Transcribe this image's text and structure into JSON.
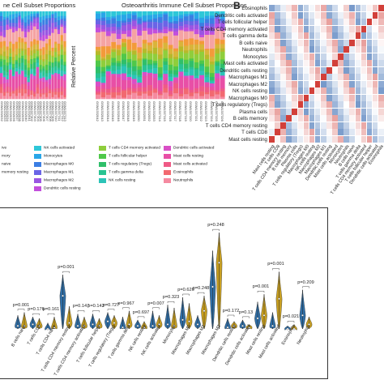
{
  "panel_a": {
    "title_left": "ne Cell Subset Proportions",
    "title_right": "Osteoarthritis Immune Cell Subset Proportions",
    "ylabel": "Relative Percent",
    "samples_left": [
      "GSM1332032",
      "GSM1332033",
      "GSM1332034",
      "GSM1332035",
      "GSM1332036",
      "GSM1332037",
      "GSM1332038",
      "GSM1332039",
      "GSM1332040",
      "GSM1332041",
      "GSM1337302",
      "GSM1337303",
      "GSM1337304",
      "GSM1337305",
      "GSM1337306",
      "GSM1337307",
      "GSM1337308",
      "GSM1337309",
      "GSM1337310",
      "GSM1337311",
      "GSM1337312",
      "GSM1337313"
    ],
    "samples_right": [
      "GSM1332042",
      "GSM1332043",
      "GSM1332044",
      "GSM1332045",
      "GSM1332046",
      "GSM1332047",
      "GSM1332048",
      "GSM1332049",
      "GSM1332050",
      "GSM1332051",
      "GSM1332052",
      "GSM1332053",
      "GSM1337314",
      "GSM1337315",
      "GSM1337316",
      "GSM1337317",
      "GSM1337318",
      "GSM1337319",
      "GSM1337320",
      "GSM1337321",
      "GSM1337322",
      "GSM1337323",
      "GSM1337324",
      "GSM1337325",
      "GSM1337326"
    ]
  },
  "legend": [
    {
      "label": "ive",
      "color": "#f5a3a3"
    },
    {
      "label": "mory",
      "color": "#f39a3a"
    },
    {
      "label": "naive",
      "color": "#d9b43a"
    },
    {
      "label": "memory resting",
      "color": "#b7b92a"
    },
    {
      "label": "NK cells activated",
      "color": "#2ec7d8"
    },
    {
      "label": "Monocytes",
      "color": "#29a6e8"
    },
    {
      "label": "Macrophages M0",
      "color": "#3b7ee3"
    },
    {
      "label": "Macrophages M1",
      "color": "#6a64e6"
    },
    {
      "label": "Macrophages M2",
      "color": "#9a56e2"
    },
    {
      "label": "Dendritic cells resting",
      "color": "#c24fdc"
    },
    {
      "label": "T cells CD4 memory activated",
      "color": "#8fce3c"
    },
    {
      "label": "T cells follicular helper",
      "color": "#4fc84a"
    },
    {
      "label": "T cells regulatory (Tregs)",
      "color": "#2fbf6a"
    },
    {
      "label": "T cells gamma delta",
      "color": "#28c392"
    },
    {
      "label": "NK cells resting",
      "color": "#2cc4b8"
    },
    {
      "label": "Dendritic cells activated",
      "color": "#d94fc6"
    },
    {
      "label": "Mast cells resting",
      "color": "#e84fa6"
    },
    {
      "label": "Mast cells activated",
      "color": "#ef5a86"
    },
    {
      "label": "Eosinophils",
      "color": "#f26970"
    },
    {
      "label": "Neutrophils",
      "color": "#f58aa0"
    }
  ],
  "panel_b": {
    "letter": "B",
    "rows": [
      "Eosinophils",
      "Dendritic cells activated",
      "T cells follicular helper",
      "T cells CD4 memory activated",
      "T cells gamma delta",
      "B cells naive",
      "Neutrophils",
      "Monocytes",
      "Mast cells activated",
      "Dendritic cells resting",
      "Macrophages M1",
      "Macrophages M2",
      "NK cells resting",
      "Macrophages M0",
      "T cells regulatory (Tregs)",
      "Plasma cells",
      "B cells memory",
      "T cells CD4 memory resting",
      "T cells CD8",
      "Mast cells resting"
    ],
    "columns": [
      "Mast cells resting",
      "T cells CD8",
      "T cells CD4 memory resting",
      "B cells memory",
      "Plasma cells",
      "T cells regulatory (Tregs)",
      "Macrophages M0",
      "NK cells resting",
      "Macrophages M2",
      "Macrophages M1",
      "Dendritic cells resting",
      "Mast cells activated",
      "Monocytes",
      "Neutrophils",
      "B cells naive",
      "T cells gamma delta",
      "T cells CD4 memory activated",
      "T cells follicular helper",
      "Dendritic cells activated",
      "Eosinophils"
    ],
    "colors": {
      "neg": "#3b6db3",
      "pos": "#d2403a",
      "mid": "#ffffff"
    }
  },
  "chart_data": {
    "type": "violin",
    "title": "",
    "xlabel": "",
    "ylabel": "",
    "categories": [
      "B cells naive",
      "T cells CD8",
      "T cells CD4 naive",
      "T cells CD4 memory resting",
      "T cells CD4 memory activated",
      "T cells follicular helper",
      "T cells regulatory (Tregs)",
      "T cells gamma delta",
      "NK cells resting",
      "NK cells activated",
      "Monocytes",
      "Macrophages M0",
      "Macrophages M1",
      "Macrophages M2",
      "Dendritic cells resting",
      "Dendritic cells activated",
      "Mast cells resting",
      "Mast cells activated",
      "Eosinophils",
      "Neutrophils"
    ],
    "pvalues": [
      "p=0.001",
      "p=0.176",
      "p=0.161",
      "p=0.001",
      "p=0.147",
      "p=0.142",
      "p=0.727",
      "p=0.967",
      "p=0.697",
      "p=0.007",
      "p=0.323",
      "p=0.626",
      "p=0.248",
      "p=0.248",
      "p=0.172",
      "p=0.13",
      "p=0.001",
      "p=0.001",
      "p=0.021",
      "p=0.209"
    ],
    "series": [
      {
        "name": "",
        "color": "#2f6ea6",
        "median": [
          0.02,
          0.03,
          0.0,
          0.22,
          0.02,
          0.03,
          0.05,
          0.01,
          0.02,
          0.02,
          0.03,
          0.06,
          0.03,
          0.28,
          0.01,
          0.02,
          0.07,
          0.02,
          0.0,
          0.09
        ],
        "max": [
          0.09,
          0.08,
          0.04,
          0.36,
          0.1,
          0.1,
          0.11,
          0.08,
          0.06,
          0.12,
          0.16,
          0.21,
          0.09,
          0.52,
          0.07,
          0.06,
          0.18,
          0.11,
          0.02,
          0.26
        ]
      },
      {
        "name": "",
        "color": "#c9a020",
        "median": [
          0.02,
          0.02,
          0.01,
          0.04,
          0.02,
          0.02,
          0.04,
          0.03,
          0.01,
          0.03,
          0.02,
          0.05,
          0.12,
          0.44,
          0.02,
          0.01,
          0.09,
          0.2,
          0.0,
          0.03
        ],
        "max": [
          0.11,
          0.07,
          0.08,
          0.15,
          0.08,
          0.07,
          0.09,
          0.12,
          0.05,
          0.09,
          0.14,
          0.17,
          0.22,
          0.64,
          0.05,
          0.03,
          0.23,
          0.38,
          0.03,
          0.08
        ]
      }
    ],
    "ylim": [
      0,
      0.7
    ]
  }
}
